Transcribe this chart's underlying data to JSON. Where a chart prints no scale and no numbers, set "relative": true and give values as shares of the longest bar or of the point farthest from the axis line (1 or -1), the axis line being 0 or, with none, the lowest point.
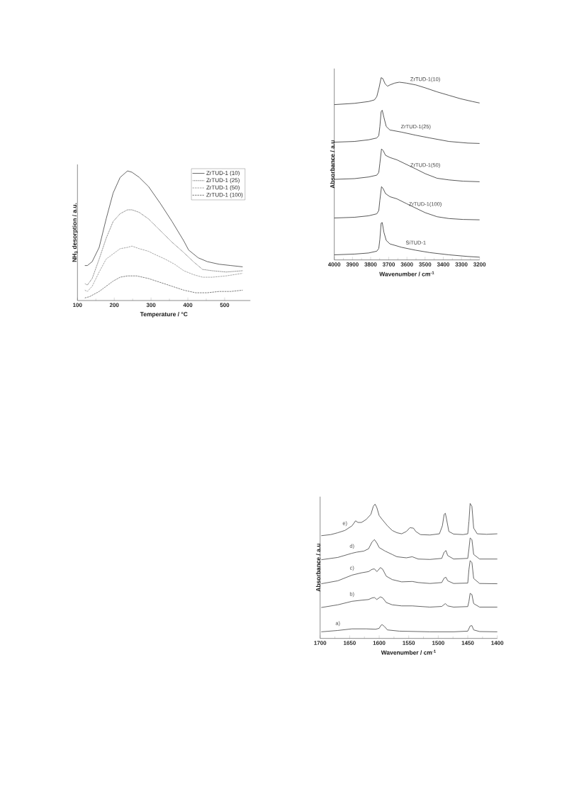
{
  "chart_data": [
    {
      "type": "line",
      "xlabel": "Temperature / °C",
      "ylabel": "NH$_{3}$ desorption / a.u.",
      "xlim": [
        100,
        570
      ],
      "xticks": [
        100,
        200,
        300,
        400,
        500
      ],
      "relative": true,
      "legend": "top right",
      "series": [
        {
          "name": "ZrTUD-1 (10)",
          "color": "#555555",
          "line_style": "solid",
          "x": [
            120,
            127,
            140,
            159,
            178,
            197,
            216,
            236,
            248,
            268,
            293,
            325,
            357,
            389,
            402,
            428,
            453,
            485,
            517,
            549
          ],
          "values": [
            0.27,
            0.27,
            0.3,
            0.41,
            0.63,
            0.83,
            0.95,
            1.0,
            0.99,
            0.95,
            0.88,
            0.75,
            0.61,
            0.46,
            0.39,
            0.33,
            0.3,
            0.28,
            0.27,
            0.26
          ]
        },
        {
          "name": "ZrTUD-1 (25)",
          "color": "#666666",
          "line_style": "dotted",
          "x": [
            120,
            127,
            140,
            159,
            178,
            197,
            216,
            236,
            248,
            268,
            293,
            325,
            357,
            389,
            415,
            440,
            466,
            504,
            549
          ],
          "values": [
            0.13,
            0.12,
            0.17,
            0.32,
            0.48,
            0.61,
            0.67,
            0.7,
            0.7,
            0.68,
            0.63,
            0.54,
            0.45,
            0.37,
            0.3,
            0.24,
            0.23,
            0.22,
            0.23
          ]
        },
        {
          "name": "ZrTUD-1 (50)",
          "color": "#9a9a9a",
          "line_style": "dashed",
          "x": [
            120,
            127,
            140,
            159,
            178,
            197,
            216,
            236,
            248,
            268,
            293,
            307,
            338,
            364,
            389,
            415,
            440,
            466,
            504,
            549
          ],
          "values": [
            0.08,
            0.07,
            0.11,
            0.22,
            0.32,
            0.36,
            0.4,
            0.41,
            0.42,
            0.4,
            0.38,
            0.36,
            0.32,
            0.28,
            0.23,
            0.2,
            0.18,
            0.18,
            0.19,
            0.21
          ]
        },
        {
          "name": "ZrTUD-1 (100)",
          "color": "#707070",
          "line_style": "dashed",
          "x": [
            120,
            133,
            159,
            178,
            197,
            216,
            236,
            261,
            293,
            325,
            357,
            389,
            421,
            453,
            485,
            517,
            549
          ],
          "values": [
            0.02,
            0.03,
            0.07,
            0.11,
            0.15,
            0.18,
            0.19,
            0.19,
            0.17,
            0.14,
            0.11,
            0.08,
            0.06,
            0.06,
            0.07,
            0.07,
            0.08
          ]
        }
      ]
    },
    {
      "type": "line",
      "xlabel": "Wavenumber / cm$^{-1}$",
      "ylabel": "Absorbance / a.u",
      "xlim": [
        4000,
        3200
      ],
      "xticks": [
        4000,
        3900,
        3800,
        3700,
        3600,
        3500,
        3400,
        3300,
        3200
      ],
      "relative": true,
      "series": [
        {
          "name": "ZrTUD-1(10)",
          "color": "#444444",
          "x": [
            4000,
            3889,
            3811,
            3779,
            3766,
            3753,
            3742,
            3733,
            3720,
            3707,
            3694,
            3668,
            3642,
            3603,
            3551,
            3499,
            3434,
            3369,
            3304,
            3239,
            3200
          ],
          "values": [
            0.852,
            0.859,
            0.869,
            0.878,
            0.896,
            0.947,
            1.0,
            0.995,
            0.966,
            0.953,
            0.96,
            0.97,
            0.975,
            0.97,
            0.96,
            0.944,
            0.922,
            0.903,
            0.884,
            0.869,
            0.861
          ]
        },
        {
          "name": "ZrTUD-1(25)",
          "color": "#444444",
          "x": [
            4000,
            3889,
            3811,
            3766,
            3755,
            3749,
            3742,
            3736,
            3727,
            3714,
            3694,
            3629,
            3551,
            3473,
            3369,
            3265,
            3200
          ],
          "values": [
            0.646,
            0.65,
            0.659,
            0.669,
            0.682,
            0.732,
            0.814,
            0.821,
            0.783,
            0.732,
            0.713,
            0.701,
            0.684,
            0.669,
            0.65,
            0.641,
            0.639
          ]
        },
        {
          "name": "ZrTUD-1(50)",
          "color": "#444444",
          "x": [
            4000,
            3889,
            3811,
            3766,
            3755,
            3749,
            3740,
            3731,
            3718,
            3694,
            3655,
            3603,
            3551,
            3499,
            3434,
            3369,
            3291,
            3200
          ],
          "values": [
            0.442,
            0.446,
            0.455,
            0.465,
            0.48,
            0.53,
            0.609,
            0.6,
            0.574,
            0.562,
            0.549,
            0.524,
            0.499,
            0.473,
            0.448,
            0.439,
            0.432,
            0.429
          ]
        },
        {
          "name": "ZrTUD-1(100)",
          "color": "#444444",
          "x": [
            4000,
            3889,
            3811,
            3766,
            3755,
            3749,
            3740,
            3731,
            3718,
            3694,
            3655,
            3603,
            3551,
            3499,
            3434,
            3369,
            3291,
            3200
          ],
          "values": [
            0.23,
            0.234,
            0.242,
            0.253,
            0.271,
            0.328,
            0.402,
            0.391,
            0.364,
            0.347,
            0.335,
            0.309,
            0.284,
            0.259,
            0.237,
            0.227,
            0.222,
            0.22
          ]
        },
        {
          "name": "SiTUD-1",
          "color": "#444444",
          "x": [
            4000,
            3889,
            3811,
            3766,
            3755,
            3749,
            3742,
            3736,
            3727,
            3714,
            3694,
            3629,
            3551,
            3473,
            3369,
            3265,
            3200
          ],
          "values": [
            0.028,
            0.032,
            0.038,
            0.048,
            0.063,
            0.114,
            0.202,
            0.205,
            0.152,
            0.107,
            0.088,
            0.069,
            0.053,
            0.04,
            0.028,
            0.019,
            0.015
          ]
        }
      ]
    },
    {
      "type": "line",
      "xlabel": "Wavenumber / cm$^{-1}$",
      "ylabel": "Absorbance / a.u",
      "xlim": [
        1700,
        1400
      ],
      "xticks": [
        1700,
        1650,
        1600,
        1550,
        1500,
        1450,
        1400
      ],
      "relative": true,
      "series": [
        {
          "name": "a)",
          "color": "#555555",
          "x": [
            1698,
            1670,
            1646,
            1622,
            1606,
            1600,
            1597,
            1595,
            1591,
            1586,
            1566,
            1514,
            1474,
            1450,
            1446,
            1443,
            1440,
            1430,
            1400
          ],
          "values": [
            0.049,
            0.059,
            0.071,
            0.071,
            0.068,
            0.075,
            0.097,
            0.102,
            0.088,
            0.063,
            0.054,
            0.049,
            0.049,
            0.054,
            0.092,
            0.095,
            0.063,
            0.051,
            0.049
          ]
        },
        {
          "name": "b)",
          "color": "#555555",
          "x": [
            1698,
            1670,
            1646,
            1630,
            1618,
            1612,
            1608,
            1604,
            1598,
            1594,
            1588,
            1578,
            1562,
            1544,
            1514,
            1494,
            1488,
            1484,
            1474,
            1450,
            1448,
            1446,
            1443,
            1440,
            1430,
            1400
          ],
          "values": [
            0.229,
            0.249,
            0.275,
            0.283,
            0.288,
            0.3,
            0.303,
            0.288,
            0.308,
            0.3,
            0.266,
            0.249,
            0.241,
            0.241,
            0.232,
            0.237,
            0.258,
            0.241,
            0.232,
            0.236,
            0.275,
            0.334,
            0.325,
            0.258,
            0.232,
            0.232
          ]
        },
        {
          "name": "c)",
          "color": "#555555",
          "x": [
            1698,
            1670,
            1646,
            1630,
            1618,
            1612,
            1608,
            1604,
            1602,
            1598,
            1594,
            1588,
            1578,
            1562,
            1544,
            1534,
            1514,
            1494,
            1490,
            1487,
            1484,
            1474,
            1450,
            1448,
            1446,
            1443,
            1440,
            1430,
            1400
          ],
          "values": [
            0.405,
            0.427,
            0.469,
            0.486,
            0.495,
            0.512,
            0.515,
            0.495,
            0.503,
            0.525,
            0.512,
            0.461,
            0.436,
            0.419,
            0.422,
            0.414,
            0.407,
            0.414,
            0.447,
            0.453,
            0.427,
            0.407,
            0.41,
            0.512,
            0.576,
            0.563,
            0.444,
            0.407,
            0.405
          ]
        },
        {
          "name": "d)",
          "color": "#555555",
          "x": [
            1698,
            1670,
            1646,
            1638,
            1626,
            1618,
            1612,
            1608,
            1604,
            1600,
            1590,
            1578,
            1570,
            1554,
            1544,
            1534,
            1514,
            1494,
            1490,
            1487,
            1484,
            1474,
            1450,
            1448,
            1446,
            1443,
            1440,
            1430,
            1400
          ],
          "values": [
            0.583,
            0.6,
            0.631,
            0.639,
            0.647,
            0.664,
            0.715,
            0.732,
            0.707,
            0.673,
            0.647,
            0.622,
            0.605,
            0.597,
            0.605,
            0.588,
            0.585,
            0.593,
            0.639,
            0.651,
            0.614,
            0.588,
            0.593,
            0.664,
            0.744,
            0.732,
            0.622,
            0.588,
            0.588
          ]
        },
        {
          "name": "e)",
          "color": "#555555",
          "x": [
            1698,
            1682,
            1670,
            1658,
            1646,
            1640,
            1636,
            1630,
            1622,
            1614,
            1610,
            1607,
            1604,
            1600,
            1594,
            1586,
            1578,
            1570,
            1562,
            1554,
            1548,
            1542,
            1538,
            1530,
            1514,
            1498,
            1493,
            1490,
            1488,
            1486,
            1482,
            1474,
            1458,
            1450,
            1448,
            1446,
            1443,
            1440,
            1434,
            1418,
            1400
          ],
          "values": [
            0.761,
            0.769,
            0.783,
            0.8,
            0.834,
            0.871,
            0.859,
            0.859,
            0.881,
            0.919,
            0.978,
            0.995,
            0.969,
            0.91,
            0.876,
            0.834,
            0.8,
            0.783,
            0.775,
            0.792,
            0.82,
            0.817,
            0.792,
            0.769,
            0.766,
            0.775,
            0.834,
            0.919,
            0.927,
            0.885,
            0.792,
            0.773,
            0.769,
            0.775,
            0.868,
            1.0,
            0.978,
            0.817,
            0.775,
            0.771,
            0.775
          ]
        }
      ]
    }
  ]
}
